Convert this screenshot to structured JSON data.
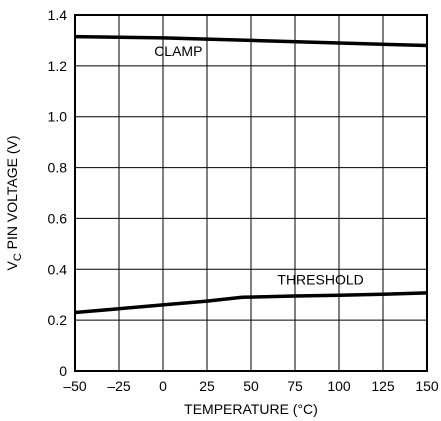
{
  "chart_data": {
    "type": "line",
    "title": "",
    "xlabel": "TEMPERATURE (°C)",
    "ylabel": {
      "main": "V",
      "subscript": "C",
      "rest": " PIN VOLTAGE (V)"
    },
    "xlim": [
      -50,
      150
    ],
    "ylim": [
      0,
      1.4
    ],
    "xticks": [
      "–50",
      "–25",
      "0",
      "25",
      "50",
      "75",
      "100",
      "125",
      "150"
    ],
    "yticks": [
      "0",
      "0.2",
      "0.4",
      "0.6",
      "0.8",
      "1.0",
      "1.2",
      "1.4"
    ],
    "grid": true,
    "series": [
      {
        "name": "CLAMP",
        "x": [
          -50,
          0,
          50,
          100,
          150
        ],
        "y": [
          1.315,
          1.31,
          1.3,
          1.29,
          1.28
        ]
      },
      {
        "name": "THRESHOLD",
        "x": [
          -50,
          -25,
          0,
          25,
          45,
          75,
          100,
          125,
          150
        ],
        "y": [
          0.23,
          0.245,
          0.26,
          0.275,
          0.29,
          0.295,
          0.298,
          0.302,
          0.307
        ]
      }
    ],
    "colors": {
      "line": "#000000",
      "grid": "#000000"
    }
  }
}
